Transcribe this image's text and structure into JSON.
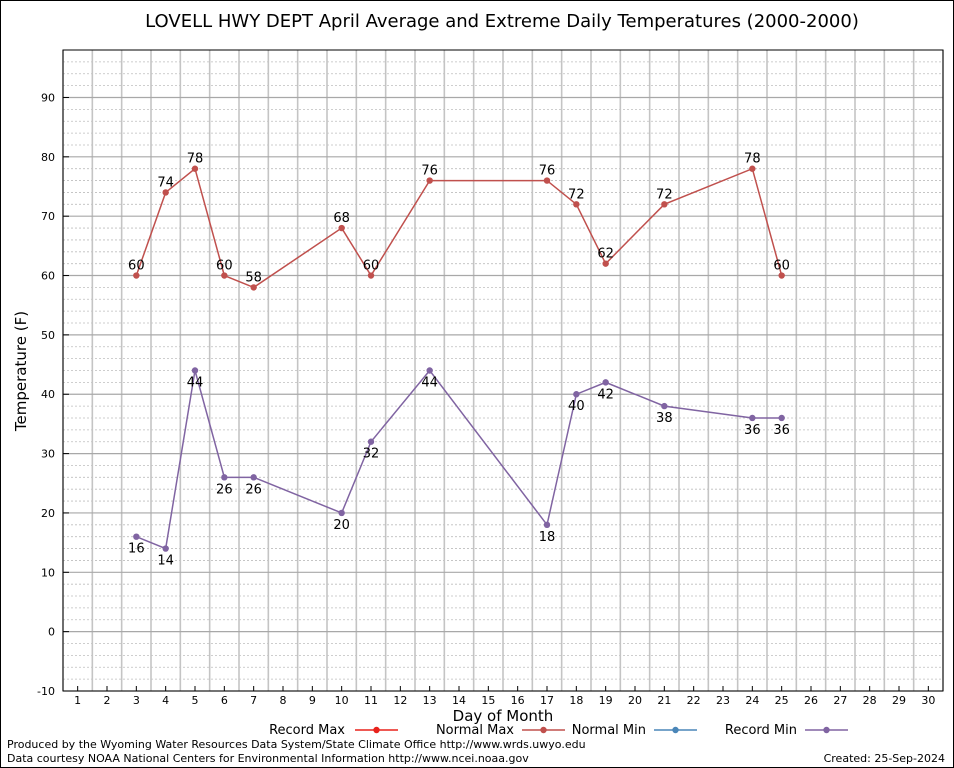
{
  "chart_data": {
    "type": "line",
    "title": "LOVELL HWY DEPT April Average and Extreme Daily Temperatures (2000-2000)",
    "xlabel": "Day of Month",
    "ylabel": "Temperature (F)",
    "xlim": [
      1,
      30
    ],
    "ylim": [
      -10,
      98
    ],
    "x_ticks": [
      1,
      2,
      3,
      4,
      5,
      6,
      7,
      8,
      9,
      10,
      11,
      12,
      13,
      14,
      15,
      16,
      17,
      18,
      19,
      20,
      21,
      22,
      23,
      24,
      25,
      26,
      27,
      28,
      29,
      30
    ],
    "y_ticks": [
      -10,
      0,
      10,
      20,
      30,
      40,
      50,
      60,
      70,
      80,
      90
    ],
    "grid": true,
    "legend_position": "bottom",
    "series": [
      {
        "name": "Record Max",
        "color": "#e8221c",
        "x": [],
        "y": [],
        "labels": false
      },
      {
        "name": "Normal Max",
        "color": "#c0504d",
        "x": [
          3,
          4,
          5,
          6,
          7,
          10,
          11,
          13,
          17,
          18,
          19,
          21,
          24,
          25
        ],
        "y": [
          60,
          74,
          78,
          60,
          58,
          68,
          60,
          76,
          76,
          72,
          62,
          72,
          78,
          60
        ],
        "labels": true,
        "label_side": "above"
      },
      {
        "name": "Normal Min",
        "color": "#4a86b8",
        "x": [],
        "y": [],
        "labels": false
      },
      {
        "name": "Record Min",
        "color": "#8064a2",
        "x": [
          3,
          4,
          5,
          6,
          7,
          10,
          11,
          13,
          17,
          18,
          19,
          21,
          24,
          25
        ],
        "y": [
          16,
          14,
          44,
          26,
          26,
          20,
          32,
          44,
          18,
          40,
          42,
          38,
          36,
          36
        ],
        "labels": true,
        "label_side": "below"
      }
    ]
  },
  "footer": {
    "produced_by": "Produced by the Wyoming Water Resources Data System/State Climate Office http://www.wrds.uwyo.edu",
    "courtesy": "Data courtesy NOAA National Centers for Environmental Information http://www.ncei.noaa.gov",
    "created": "Created: 25-Sep-2024"
  }
}
